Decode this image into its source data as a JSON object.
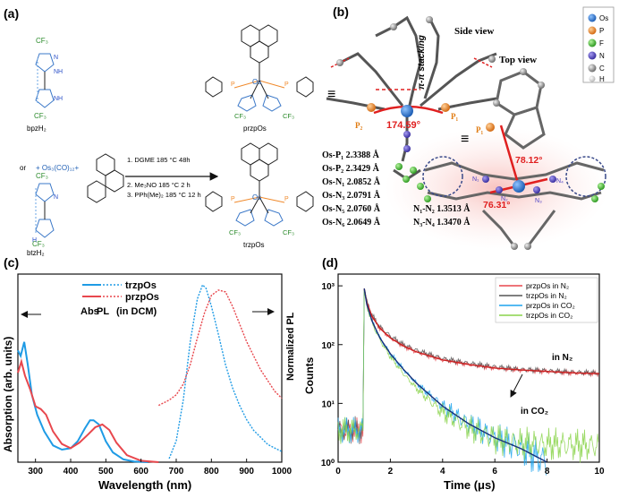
{
  "panels": {
    "a": {
      "label": "(a)",
      "ligands": {
        "bpz_cf3_top": "CF₃",
        "bpz_cf3_bottom": "CF₃",
        "bpz_name": "bpzH₂",
        "btz_cf3_top": "CF₃",
        "btz_cf3_bottom": "CF₃",
        "btz_name": "btzH₂",
        "n": "N",
        "nh": "NH",
        "h": "H"
      },
      "or_text": "or",
      "plus_os": "+ Os₃(CO)₁₂+",
      "steps": [
        "1. DGME 185 °C 48h",
        "2. Me₃NO 185 °C 2 h",
        "3. PPh(Me)₂ 185 °C 12 h"
      ],
      "products": {
        "top_name": "przpOs",
        "bottom_name": "trzpOs",
        "os": "Os",
        "p": "P",
        "n": "N",
        "cf3": "CF₃"
      }
    },
    "b": {
      "label": "(b)",
      "pi_stack": "π-π stacking",
      "side_view": "Side view",
      "top_view": "Top view",
      "angle_side": "174.59°",
      "angle_top1": "78.12°",
      "angle_top2": "76.31°",
      "p1_side": "P₁",
      "p2_side": "P₂",
      "p1_top": "P₁",
      "n_labels": [
        "N₁",
        "N₂",
        "N₃",
        "N₄"
      ],
      "equiv1": "≡",
      "equiv2": "≡",
      "bond_lines": [
        "Os-P₁ 2.3388 Å",
        "Os-P₂ 2.3429 Å",
        "Os-N₁ 2.0852 Å",
        "Os-N₃ 2.0791 Å",
        "Os-N₅ 2.0760 Å",
        "Os-N₆ 2.0649 Å"
      ],
      "bond_lines_extra": [
        "N₁-N₂ 1.3513 Å",
        "N₃-N₄ 1.3470 Å"
      ],
      "legend": [
        {
          "label": "Os",
          "color": "#2f7fd8"
        },
        {
          "label": "P",
          "color": "#f08a2c"
        },
        {
          "label": "F",
          "color": "#46c23a"
        },
        {
          "label": "N",
          "color": "#4b3fc4"
        },
        {
          "label": "C",
          "color": "#9a9a9a"
        },
        {
          "label": "H",
          "color": "#e6e6e6"
        }
      ]
    },
    "c": {
      "label": "(c)"
    },
    "d": {
      "label": "(d)"
    }
  },
  "chart_data": [
    {
      "panel": "c",
      "type": "line",
      "xlabel": "Wavelength (nm)",
      "ylabel": "Absorption (arb. units)",
      "y2label": "Normalized PL",
      "xlim": [
        250,
        1000
      ],
      "xticks": [
        300,
        400,
        500,
        600,
        700,
        800,
        900,
        1000
      ],
      "xtick_labels": [
        "300",
        "400",
        "500",
        "600",
        "700",
        "800",
        "900",
        "1000"
      ],
      "legend": {
        "entries": [
          "trzpOs",
          "przpOs"
        ],
        "note": "(in DCM)",
        "abs_label": "Abs",
        "pl_label": "PL",
        "colors": [
          "#1f9be5",
          "#e8474d"
        ]
      },
      "series": [
        {
          "name": "trzpOs",
          "kind": "Abs",
          "color": "#1f9be5",
          "x": [
            250,
            258,
            268,
            278,
            290,
            305,
            325,
            350,
            375,
            400,
            420,
            440,
            455,
            465,
            480,
            500,
            520,
            550,
            580,
            620
          ],
          "y": [
            0.8,
            0.76,
            0.86,
            0.7,
            0.48,
            0.34,
            0.22,
            0.12,
            0.09,
            0.1,
            0.15,
            0.24,
            0.3,
            0.3,
            0.27,
            0.15,
            0.07,
            0.02,
            0.005,
            0
          ]
        },
        {
          "name": "przpOs",
          "kind": "Abs",
          "color": "#e8474d",
          "x": [
            250,
            260,
            270,
            285,
            300,
            315,
            330,
            350,
            375,
            400,
            425,
            450,
            470,
            490,
            510,
            530,
            560,
            600,
            650
          ],
          "y": [
            0.64,
            0.72,
            0.62,
            0.52,
            0.4,
            0.38,
            0.34,
            0.22,
            0.13,
            0.1,
            0.14,
            0.2,
            0.25,
            0.27,
            0.23,
            0.14,
            0.05,
            0.01,
            0
          ]
        },
        {
          "name": "trzpOs",
          "kind": "PL",
          "color": "#1f9be5",
          "x": [
            680,
            700,
            720,
            740,
            760,
            775,
            785,
            800,
            820,
            840,
            860,
            880,
            900,
            920,
            940,
            960,
            980,
            1000
          ],
          "y": [
            0.02,
            0.12,
            0.35,
            0.68,
            0.92,
            1.0,
            0.98,
            0.88,
            0.72,
            0.55,
            0.42,
            0.32,
            0.24,
            0.18,
            0.14,
            0.1,
            0.08,
            0.06
          ]
        },
        {
          "name": "przpOs",
          "kind": "PL",
          "color": "#e8474d",
          "x": [
            650,
            680,
            700,
            720,
            740,
            760,
            780,
            800,
            820,
            840,
            860,
            880,
            900,
            920,
            940,
            960,
            980,
            1000
          ],
          "y": [
            0.32,
            0.35,
            0.38,
            0.44,
            0.55,
            0.7,
            0.84,
            0.94,
            0.97,
            0.96,
            0.88,
            0.78,
            0.68,
            0.6,
            0.52,
            0.46,
            0.4,
            0.36
          ]
        }
      ]
    },
    {
      "panel": "d",
      "type": "line",
      "xlabel": "Time (μs)",
      "ylabel": "Counts",
      "xlim": [
        0,
        10
      ],
      "ylim": [
        1,
        1000
      ],
      "yscale": "log",
      "xticks": [
        0,
        2,
        4,
        6,
        8,
        10
      ],
      "xtick_labels": [
        "0",
        "2",
        "4",
        "6",
        "8",
        "10"
      ],
      "ytick_labels": [
        "10⁰",
        "10¹",
        "10²",
        "10³"
      ],
      "annotations": {
        "n2": "in N₂",
        "co2": "in CO₂"
      },
      "series": [
        {
          "name": "przpOs in N₂",
          "color": "#e8474d",
          "x": [
            0,
            0.95,
            1.0,
            1.1,
            1.3,
            1.6,
            2.0,
            2.5,
            3.0,
            4.0,
            5.0,
            6.0,
            7.0,
            8.0,
            9.0,
            10.0
          ],
          "y": [
            3.5,
            3.5,
            900,
            520,
            300,
            190,
            130,
            95,
            75,
            55,
            46,
            40,
            37,
            35,
            33,
            32
          ]
        },
        {
          "name": "trzpOs in N₂",
          "color": "#555555",
          "x": [
            0,
            0.95,
            1.0,
            1.1,
            1.3,
            1.6,
            2.0,
            2.5,
            3.0,
            4.0,
            5.0,
            6.0,
            7.0,
            8.0,
            9.0,
            10.0
          ],
          "y": [
            3.5,
            3.5,
            900,
            540,
            320,
            200,
            140,
            100,
            80,
            58,
            48,
            42,
            38,
            36,
            34,
            33
          ]
        },
        {
          "name": "przpOs in CO₂",
          "color": "#1fa4ee",
          "x": [
            0,
            0.95,
            1.0,
            1.1,
            1.3,
            1.6,
            2.0,
            2.5,
            3.0,
            4.0,
            5.0,
            6.0,
            7.0,
            8.0
          ],
          "y": [
            3.5,
            3.5,
            900,
            480,
            250,
            130,
            70,
            38,
            22,
            9,
            4.5,
            2.6,
            1.7,
            1.0
          ]
        },
        {
          "name": "trzpOs in CO₂",
          "color": "#8ad34a",
          "x": [
            0,
            0.95,
            1.0,
            1.1,
            1.3,
            1.6,
            2.0,
            2.5,
            3.0,
            4.0,
            5.0,
            6.0,
            7.0,
            8.0,
            9.0,
            10.0
          ],
          "y": [
            3.5,
            3.5,
            900,
            460,
            230,
            120,
            62,
            32,
            18,
            7,
            3.8,
            2.5,
            2.1,
            2.0,
            1.95,
            1.9
          ]
        }
      ]
    }
  ]
}
